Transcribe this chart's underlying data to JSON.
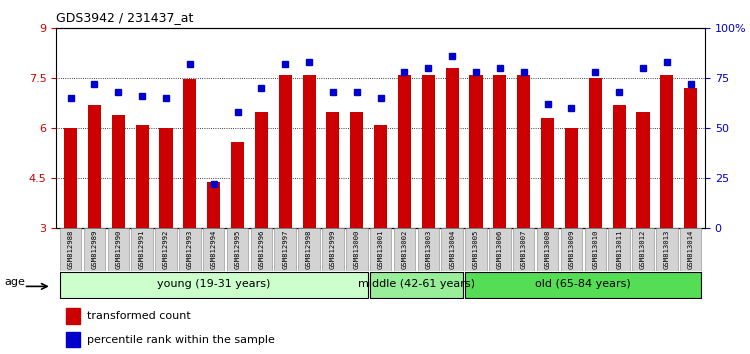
{
  "title": "GDS3942 / 231437_at",
  "samples": [
    "GSM812988",
    "GSM812989",
    "GSM812990",
    "GSM812991",
    "GSM812992",
    "GSM812993",
    "GSM812994",
    "GSM812995",
    "GSM812996",
    "GSM812997",
    "GSM812998",
    "GSM812999",
    "GSM813000",
    "GSM813001",
    "GSM813002",
    "GSM813003",
    "GSM813004",
    "GSM813005",
    "GSM813006",
    "GSM813007",
    "GSM813008",
    "GSM813009",
    "GSM813010",
    "GSM813011",
    "GSM813012",
    "GSM813013",
    "GSM813014"
  ],
  "bar_values": [
    6.0,
    6.7,
    6.4,
    6.1,
    6.0,
    7.48,
    4.4,
    5.6,
    6.5,
    7.6,
    7.6,
    6.5,
    6.5,
    6.1,
    7.6,
    7.6,
    7.8,
    7.6,
    7.6,
    7.6,
    6.3,
    6.0,
    7.5,
    6.7,
    6.5,
    7.6,
    7.2
  ],
  "percentile_values": [
    65,
    72,
    68,
    66,
    65,
    82,
    22,
    58,
    70,
    82,
    83,
    68,
    68,
    65,
    78,
    80,
    86,
    78,
    80,
    78,
    62,
    60,
    78,
    68,
    80,
    83,
    72
  ],
  "bar_color": "#cc0000",
  "percentile_color": "#0000cc",
  "ymin": 3,
  "ymax": 9,
  "yticks": [
    3,
    4.5,
    6,
    7.5,
    9
  ],
  "ytick_labels": [
    "3",
    "4.5",
    "6",
    "7.5",
    "9"
  ],
  "right_yticks": [
    0,
    25,
    50,
    75,
    100
  ],
  "right_ytick_labels": [
    "0",
    "25",
    "50",
    "75",
    "100%"
  ],
  "groups": [
    {
      "label": "young (19-31 years)",
      "start": 0,
      "end": 13,
      "color": "#ccffcc"
    },
    {
      "label": "middle (42-61 years)",
      "start": 13,
      "end": 17,
      "color": "#99ee99"
    },
    {
      "label": "old (65-84 years)",
      "start": 17,
      "end": 27,
      "color": "#55dd55"
    }
  ],
  "age_label": "age",
  "legend_bar_label": "transformed count",
  "legend_dot_label": "percentile rank within the sample",
  "tick_label_bg": "#d3d3d3",
  "bar_width": 0.55
}
